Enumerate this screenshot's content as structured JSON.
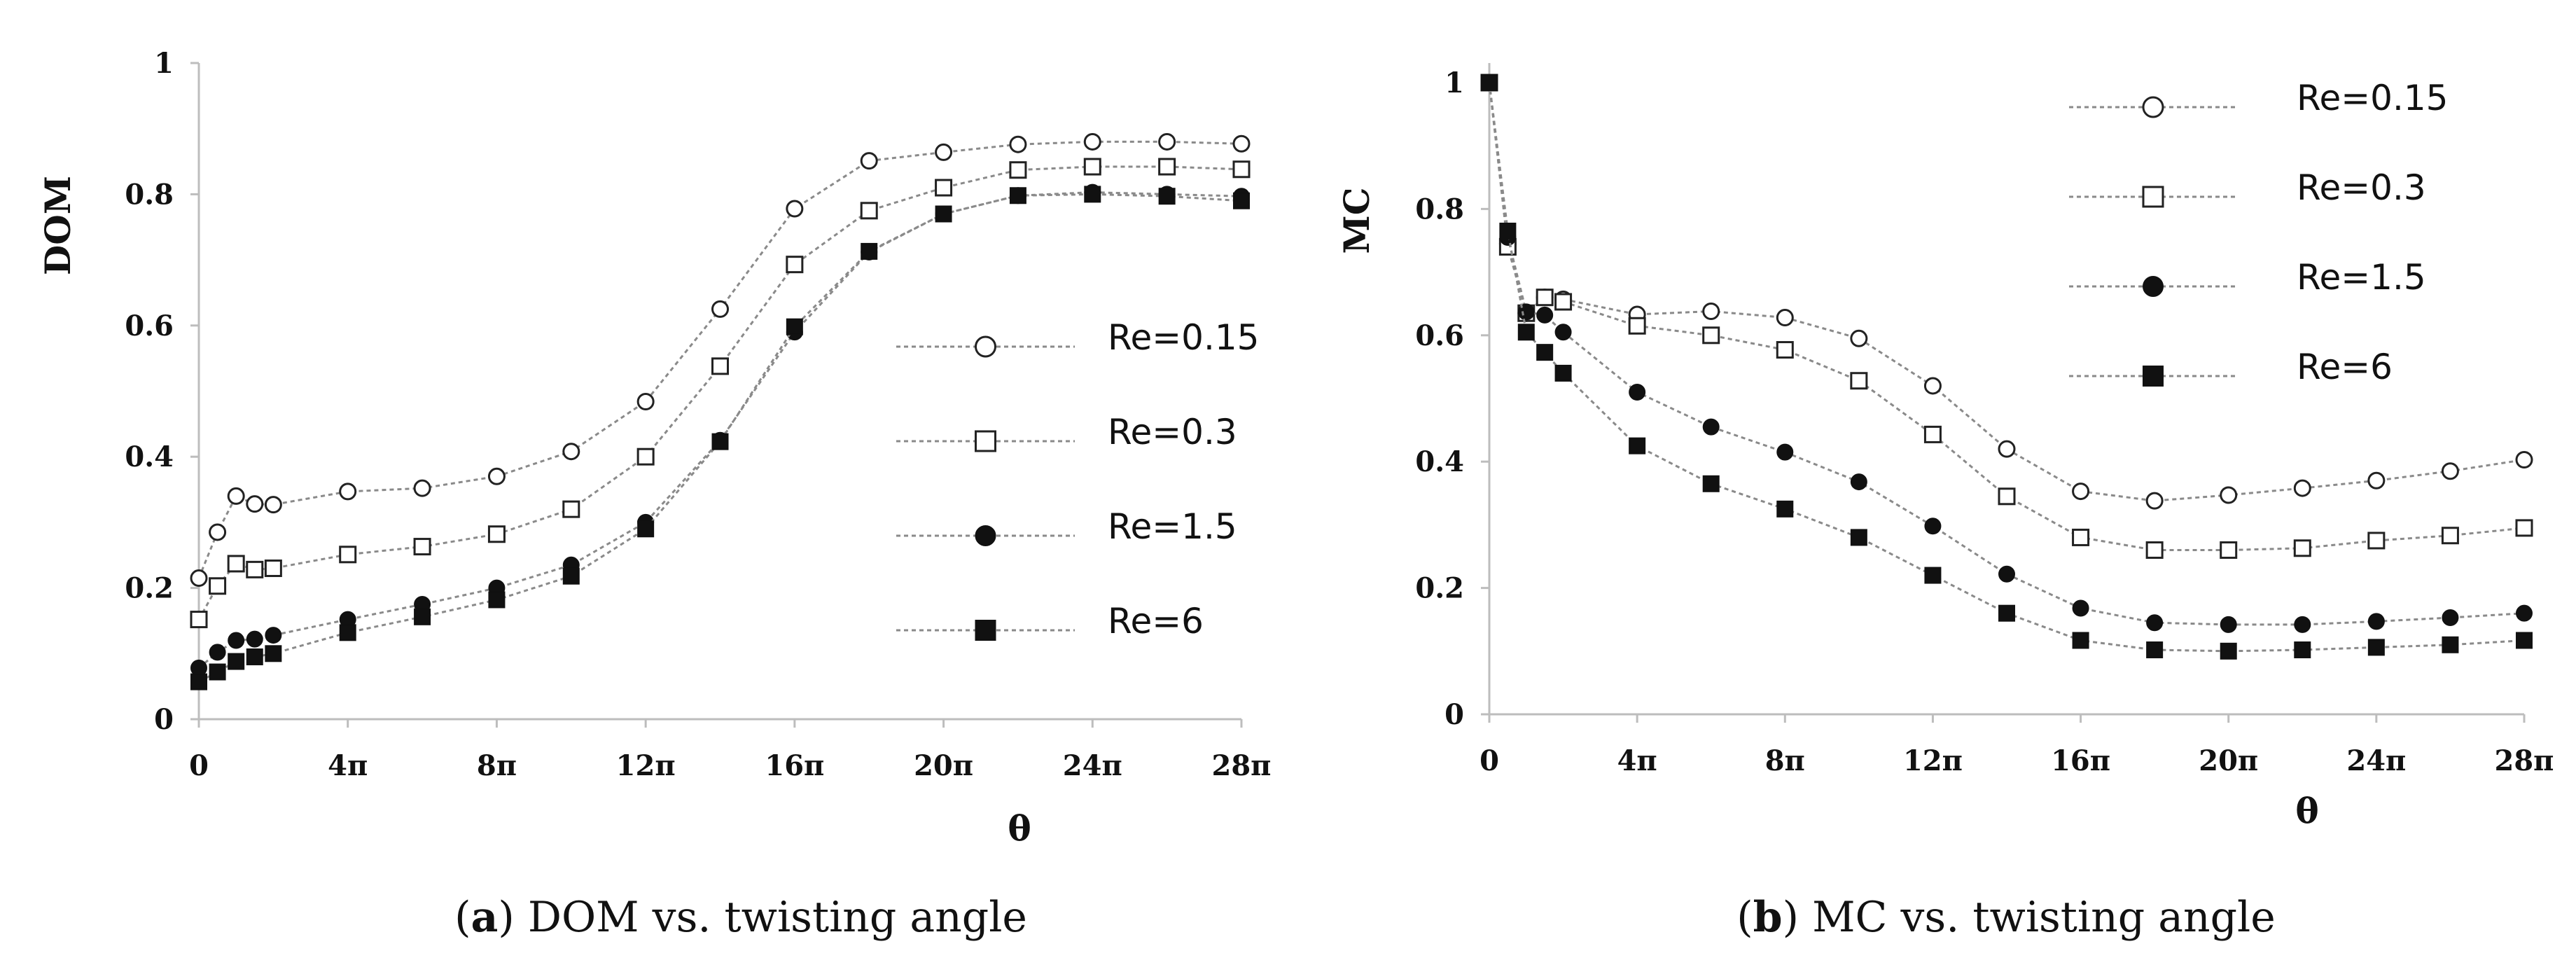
{
  "chart_data": [
    {
      "id": "a",
      "type": "line",
      "caption_label": "a",
      "caption_text": "DOM vs. twisting angle",
      "title": "",
      "xlabel": "θ",
      "ylabel": "DOM",
      "x_ticks": [
        "0",
        "4π",
        "8π",
        "12π",
        "16π",
        "20π",
        "24π",
        "28π"
      ],
      "y_ticks": [
        "0",
        "0.2",
        "0.4",
        "0.6",
        "0.8",
        "1"
      ],
      "xlim": [
        0,
        28
      ],
      "ylim": [
        0,
        1
      ],
      "x_unit": "π",
      "legend_position": "center-right",
      "x": [
        0,
        0.5,
        1,
        1.5,
        2,
        4,
        6,
        8,
        10,
        12,
        14,
        16,
        18,
        20,
        22,
        24,
        26,
        28
      ],
      "series": [
        {
          "name": "Re=0.15",
          "marker": "open-circle",
          "values": [
            0.215,
            0.285,
            0.34,
            0.328,
            0.327,
            0.347,
            0.352,
            0.37,
            0.408,
            0.484,
            0.625,
            0.778,
            0.851,
            0.864,
            0.876,
            0.88,
            0.88,
            0.877
          ]
        },
        {
          "name": "Re=0.3",
          "marker": "open-square",
          "values": [
            0.152,
            0.203,
            0.237,
            0.228,
            0.23,
            0.251,
            0.263,
            0.282,
            0.32,
            0.4,
            0.538,
            0.693,
            0.775,
            0.81,
            0.837,
            0.842,
            0.842,
            0.838
          ]
        },
        {
          "name": "Re=1.5",
          "marker": "filled-circle",
          "values": [
            0.078,
            0.102,
            0.12,
            0.122,
            0.128,
            0.152,
            0.175,
            0.2,
            0.235,
            0.3,
            0.425,
            0.59,
            0.712,
            0.77,
            0.798,
            0.803,
            0.8,
            0.797
          ]
        },
        {
          "name": "Re=6",
          "marker": "filled-square",
          "values": [
            0.057,
            0.072,
            0.088,
            0.095,
            0.1,
            0.132,
            0.156,
            0.182,
            0.218,
            0.29,
            0.423,
            0.598,
            0.713,
            0.77,
            0.798,
            0.8,
            0.797,
            0.79
          ]
        }
      ]
    },
    {
      "id": "b",
      "type": "line",
      "caption_label": "b",
      "caption_text": "MC vs. twisting angle",
      "title": "",
      "xlabel": "θ",
      "ylabel": "MC",
      "x_ticks": [
        "0",
        "4π",
        "8π",
        "12π",
        "16π",
        "20π",
        "24π",
        "28π"
      ],
      "y_ticks": [
        "0",
        "0.2",
        "0.4",
        "0.6",
        "0.8",
        "1"
      ],
      "xlim": [
        0,
        28
      ],
      "ylim": [
        0,
        1.0
      ],
      "x_unit": "π",
      "legend_position": "top-right",
      "x": [
        0,
        0.5,
        1,
        1.5,
        2,
        4,
        6,
        8,
        10,
        12,
        14,
        16,
        18,
        20,
        22,
        24,
        26,
        28
      ],
      "series": [
        {
          "name": "Re=0.15",
          "marker": "open-circle",
          "values": [
            1.0,
            0.745,
            0.635,
            0.66,
            0.657,
            0.633,
            0.638,
            0.628,
            0.595,
            0.52,
            0.42,
            0.353,
            0.338,
            0.347,
            0.358,
            0.37,
            0.385,
            0.403
          ]
        },
        {
          "name": "Re=0.3",
          "marker": "open-square",
          "values": [
            1.0,
            0.74,
            0.635,
            0.66,
            0.653,
            0.615,
            0.6,
            0.577,
            0.528,
            0.443,
            0.345,
            0.28,
            0.26,
            0.26,
            0.263,
            0.275,
            0.283,
            0.295
          ]
        },
        {
          "name": "Re=1.5",
          "marker": "filled-circle",
          "values": [
            1.0,
            0.755,
            0.637,
            0.632,
            0.605,
            0.51,
            0.455,
            0.415,
            0.368,
            0.298,
            0.222,
            0.168,
            0.145,
            0.142,
            0.142,
            0.147,
            0.153,
            0.16
          ]
        },
        {
          "name": "Re=6",
          "marker": "filled-square",
          "values": [
            1.0,
            0.765,
            0.605,
            0.573,
            0.54,
            0.425,
            0.365,
            0.325,
            0.28,
            0.22,
            0.16,
            0.117,
            0.102,
            0.1,
            0.102,
            0.106,
            0.11,
            0.117
          ]
        }
      ]
    }
  ]
}
